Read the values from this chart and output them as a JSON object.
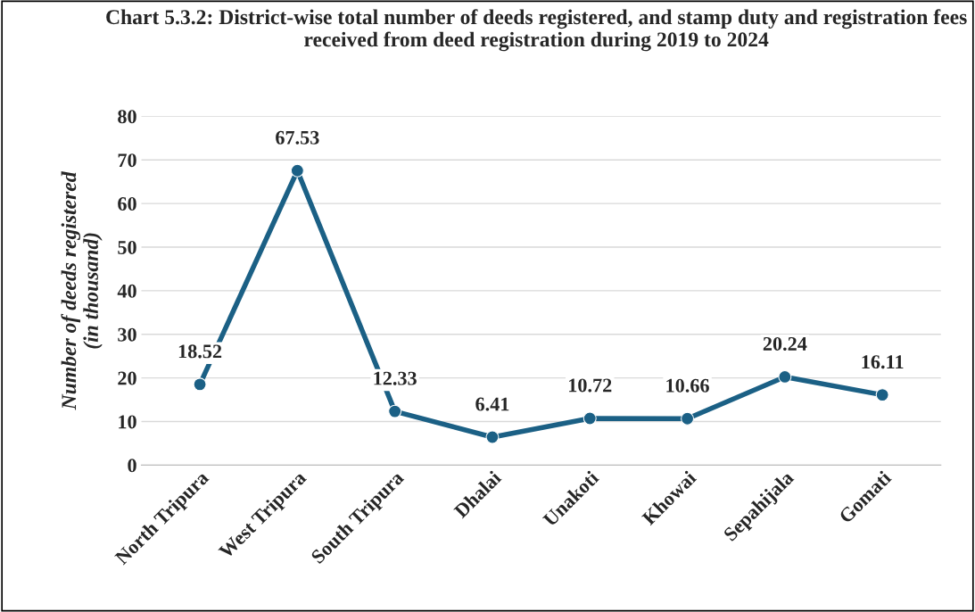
{
  "chart_data": {
    "type": "line",
    "title": "Chart 5.3.2: District-wise total number of deeds registered, and stamp duty and registration fees received from deed registration during 2019 to 2024",
    "ylabel": "Number of deeds registered\n(in thousand)",
    "categories": [
      "North Tripura",
      "West Tripura",
      "South Tripura",
      "Dhalai",
      "Unakoti",
      "Khowai",
      "Sepahijala",
      "Gomati"
    ],
    "series": [
      {
        "color": "#1b6085",
        "values": [
          18.52,
          67.53,
          12.33,
          6.41,
          10.72,
          10.66,
          20.24,
          16.11
        ]
      }
    ],
    "ylim": [
      0,
      80
    ],
    "yticks": [
      0,
      10,
      20,
      30,
      40,
      50,
      60,
      70,
      80
    ],
    "grid": "y",
    "marker": "circle",
    "line_style": "solid",
    "data_labels": true
  }
}
